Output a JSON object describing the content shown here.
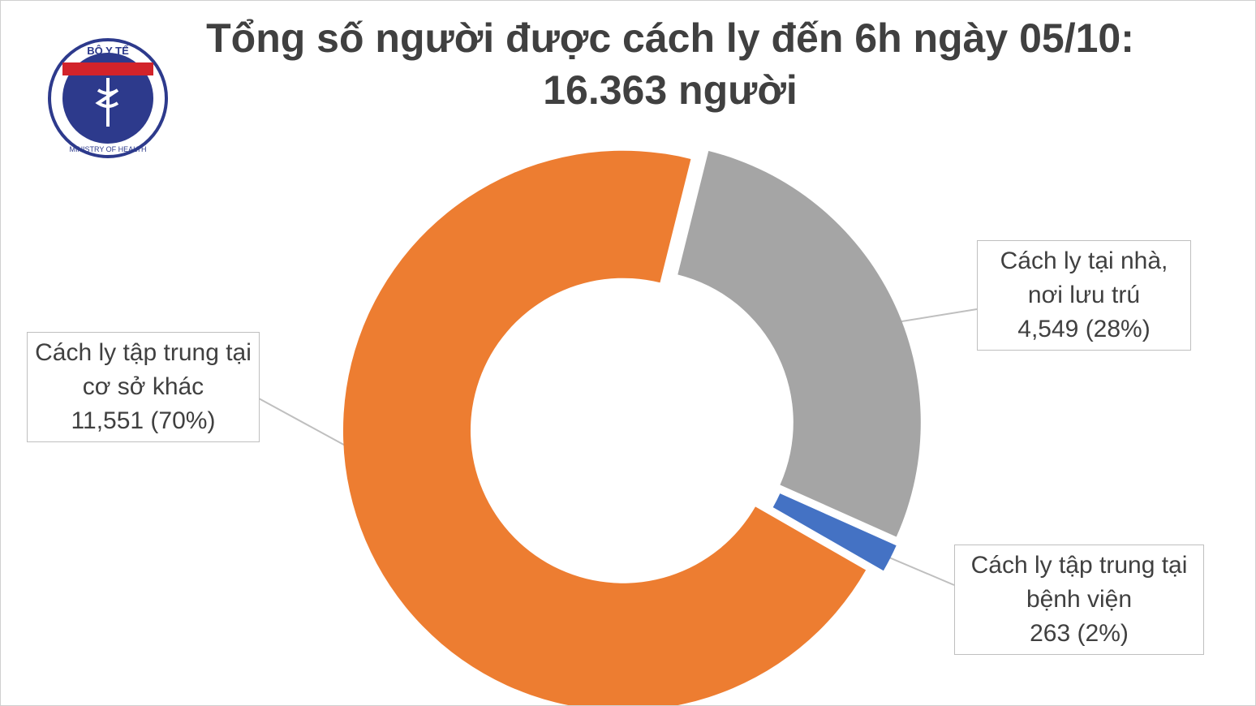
{
  "logo": {
    "top": "BỘ Y TẾ",
    "bottom": "MINISTRY OF HEALTH"
  },
  "chart_data": {
    "type": "donut",
    "title": "Tổng số người được cách ly đến 6h ngày 05/10: 16.363 người",
    "categories": [
      "Cách ly tại nhà, nơi lưu trú",
      "Cách ly tập trung tại bệnh viện",
      "Cách ly tập trung tại cơ sở khác"
    ],
    "values": [
      4549,
      263,
      11551
    ],
    "value_labels": [
      "4,549 (28%)",
      "263 (2%)",
      "11,551 (70%)"
    ],
    "colors": [
      "#a5a5a5",
      "#4472c4",
      "#ed7d31"
    ]
  }
}
